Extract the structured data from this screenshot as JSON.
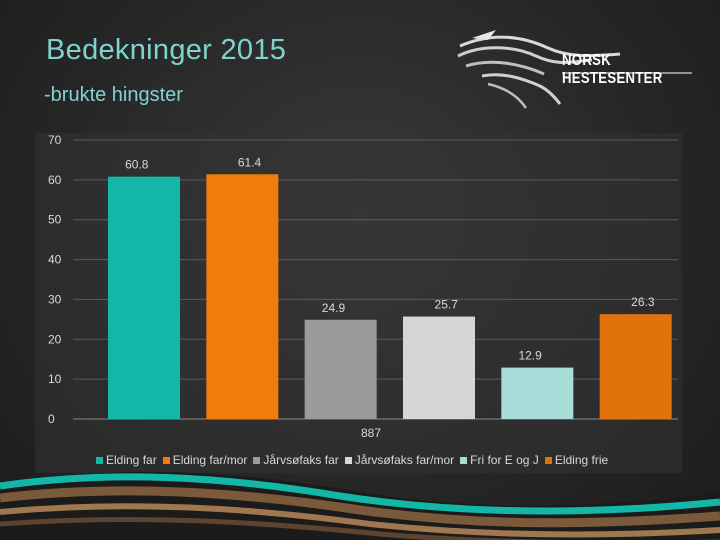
{
  "slide": {
    "title": "Bedekninger 2015",
    "subtitle": "-brukte hingster",
    "logo_text": "NORSK HESTESENTER"
  },
  "chart_data": {
    "type": "bar",
    "categories": [
      "Elding far",
      "Elding far/mor",
      "Jårvsøfaks far",
      "Jårvsøfaks far/mor",
      "Fri for E og J",
      "Elding frie"
    ],
    "values": [
      60.8,
      61.4,
      24.9,
      25.7,
      12.9,
      26.3
    ],
    "value_labels": [
      "60.8",
      "61.4",
      "24.9",
      "25.7",
      "12.9",
      "26.3"
    ],
    "colors": [
      "#13b7a8",
      "#f07c0a",
      "#9b9b9b",
      "#d6d6d6",
      "#a8dcd8",
      "#e2730c"
    ],
    "yticks": [
      "0",
      "10",
      "20",
      "30",
      "40",
      "50",
      "60",
      "70"
    ],
    "ylim": [
      0,
      70
    ],
    "grid": true,
    "legend": "bottom",
    "annotation": "887",
    "title": "",
    "xlabel": "",
    "ylabel": ""
  }
}
